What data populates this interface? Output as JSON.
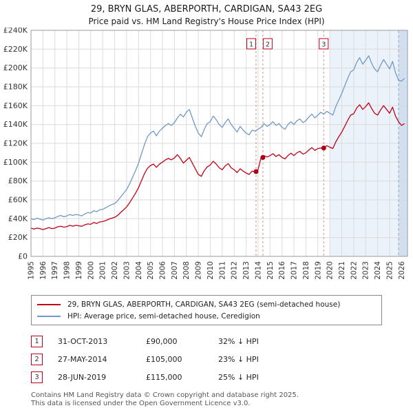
{
  "title": "29, BRYN GLAS, ABERPORTH, CARDIGAN, SA43 2EG",
  "subtitle": "Price paid vs. HM Land Registry's House Price Index (HPI)",
  "chart_data": {
    "type": "line",
    "x_start": 1995,
    "x_end": 2026.5,
    "ylim": [
      0,
      240000
    ],
    "y_tick_step": 20000,
    "grid": true,
    "legend_position": "bottom",
    "y_tick_labels": [
      "£0",
      "£20K",
      "£40K",
      "£60K",
      "£80K",
      "£100K",
      "£120K",
      "£140K",
      "£160K",
      "£180K",
      "£200K",
      "£220K",
      "£240K"
    ],
    "x_tick_labels": [
      "1995",
      "1996",
      "1997",
      "1998",
      "1999",
      "2000",
      "2001",
      "2002",
      "2003",
      "2004",
      "2005",
      "2006",
      "2007",
      "2008",
      "2009",
      "2010",
      "2011",
      "2012",
      "2013",
      "2014",
      "2015",
      "2016",
      "2017",
      "2018",
      "2019",
      "2020",
      "2021",
      "2022",
      "2023",
      "2024",
      "2025",
      "2026"
    ],
    "shaded_regions": [
      {
        "start": 2020,
        "end": 2026.5,
        "color": "#dce7f6",
        "opacity": 0.55
      },
      {
        "start": 2025.75,
        "end": 2026.5,
        "color": "#c9d9ef",
        "opacity": 0.8
      }
    ],
    "current_date_line": {
      "x": 2025.75,
      "color": "#8fa8d0"
    },
    "marker_line_color": "#d98c8c",
    "marker_box_border": "#c00018",
    "series": [
      {
        "name": "29, BRYN GLAS, ABERPORTH, CARDIGAN, SA43 2EG (semi-detached house)",
        "color": "#c00018",
        "x_first": 1995,
        "x_step": 0.25,
        "values": [
          30000,
          29000,
          30000,
          29500,
          28500,
          29500,
          30500,
          29500,
          30000,
          31500,
          32000,
          31000,
          31500,
          33000,
          32000,
          33000,
          32500,
          32000,
          33500,
          34500,
          34000,
          36000,
          35000,
          36500,
          37000,
          38000,
          39500,
          40500,
          41500,
          43500,
          46500,
          49500,
          52500,
          57000,
          62000,
          67000,
          73000,
          80500,
          88000,
          93500,
          96500,
          98000,
          94500,
          98000,
          100000,
          102500,
          104000,
          102500,
          104500,
          108000,
          104000,
          99000,
          102000,
          105000,
          99000,
          93000,
          87000,
          85000,
          91000,
          95000,
          97000,
          101000,
          98000,
          94000,
          92000,
          96000,
          98500,
          94000,
          92000,
          89000,
          93000,
          90500,
          88500,
          87000,
          90500,
          90000,
          92000,
          105000,
          107000,
          105500,
          107000,
          109000,
          106000,
          108000,
          105000,
          103500,
          107000,
          109500,
          107000,
          110000,
          111500,
          108500,
          110000,
          113000,
          115500,
          112500,
          114500,
          115000,
          115500,
          117500,
          116000,
          114500,
          121500,
          127000,
          132000,
          138000,
          144500,
          150000,
          151500,
          157500,
          161000,
          156000,
          159000,
          163000,
          157000,
          152000,
          150000,
          155500,
          160000,
          156000,
          152000,
          158500,
          149000,
          143000,
          139000,
          141000
        ]
      },
      {
        "name": "HPI: Average price, semi-detached house, Ceredigion",
        "color": "#7099c7",
        "x_first": 1995,
        "x_step": 0.25,
        "values": [
          40000,
          39000,
          40500,
          39500,
          38500,
          40000,
          41000,
          40000,
          41000,
          42500,
          43500,
          42000,
          43000,
          44500,
          43500,
          44500,
          44000,
          43000,
          45000,
          46500,
          46000,
          48500,
          47500,
          49500,
          50000,
          51500,
          53500,
          55000,
          56000,
          59000,
          63000,
          67000,
          71000,
          77000,
          84000,
          91000,
          99000,
          109000,
          119000,
          127000,
          131000,
          133000,
          128000,
          133000,
          136000,
          139000,
          141000,
          139000,
          142000,
          147000,
          151000,
          148000,
          153000,
          156000,
          147000,
          138000,
          131000,
          127000,
          135000,
          141000,
          143000,
          149000,
          145000,
          140000,
          137000,
          142000,
          146000,
          140000,
          136000,
          132000,
          138000,
          134000,
          131000,
          129000,
          134000,
          133000,
          135000,
          137000,
          141000,
          138000,
          140000,
          143000,
          139000,
          141000,
          137000,
          135000,
          140000,
          143000,
          140000,
          144000,
          146000,
          142000,
          144000,
          148000,
          151000,
          147000,
          150000,
          153000,
          151000,
          154000,
          152000,
          150000,
          159000,
          166000,
          173000,
          181000,
          189000,
          196000,
          198000,
          206000,
          211000,
          204000,
          208000,
          213000,
          205000,
          199000,
          196000,
          203000,
          209000,
          204000,
          199000,
          207000,
          195000,
          187000,
          186000,
          189000
        ]
      }
    ],
    "markers": [
      {
        "label": "1",
        "x": 2013.83,
        "value": 90000,
        "box_dx": -7
      },
      {
        "label": "2",
        "x": 2014.4,
        "value": 105000,
        "box_dx": 7
      },
      {
        "label": "3",
        "x": 2019.49,
        "value": 115000,
        "box_dx": 0
      }
    ]
  },
  "legend": {
    "items": [
      {
        "label": "29, BRYN GLAS, ABERPORTH, CARDIGAN, SA43 2EG (semi-detached house)",
        "color": "#c00018"
      },
      {
        "label": "HPI: Average price, semi-detached house, Ceredigion",
        "color": "#7099c7"
      }
    ]
  },
  "transactions": [
    {
      "num": "1",
      "date": "31-OCT-2013",
      "price": "£90,000",
      "hpi_diff": "32% ↓ HPI"
    },
    {
      "num": "2",
      "date": "27-MAY-2014",
      "price": "£105,000",
      "hpi_diff": "23% ↓ HPI"
    },
    {
      "num": "3",
      "date": "28-JUN-2019",
      "price": "£115,000",
      "hpi_diff": "25% ↓ HPI"
    }
  ],
  "footer": {
    "line1": "Contains HM Land Registry data © Crown copyright and database right 2025.",
    "line2": "This data is licensed under the Open Government Licence v3.0."
  }
}
